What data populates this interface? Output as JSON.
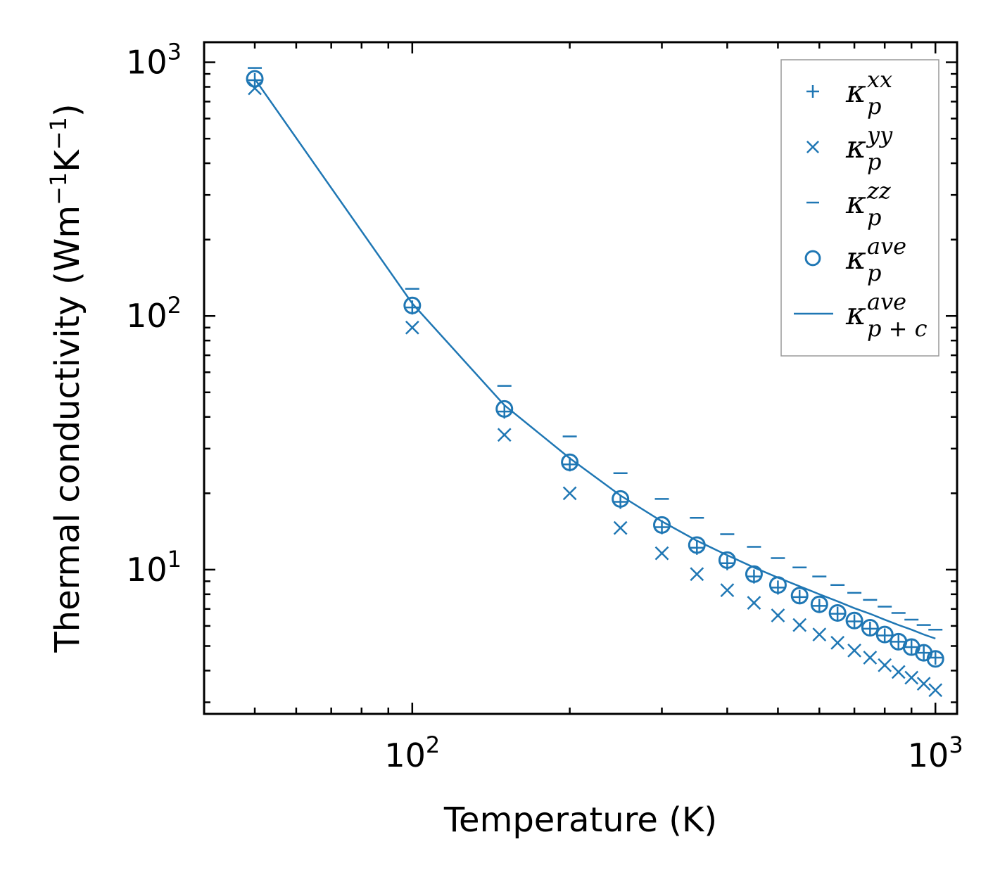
{
  "chart_data": {
    "type": "scatter",
    "xscale": "log",
    "yscale": "log",
    "xlim": [
      40,
      1100
    ],
    "ylim": [
      2.7,
      1200
    ],
    "xlabel": "Temperature (K)",
    "ylabel": {
      "prefix": "Thermal conductivity (Wm",
      "exp1": "−1",
      "middle": "K",
      "exp2": "−1",
      "suffix": ")"
    },
    "xticks": [
      {
        "value": 100,
        "base": "10",
        "exp": "2"
      },
      {
        "value": 1000,
        "base": "10",
        "exp": "3"
      }
    ],
    "yticks": [
      {
        "value": 10,
        "base": "10",
        "exp": "1"
      },
      {
        "value": 100,
        "base": "10",
        "exp": "2"
      },
      {
        "value": 1000,
        "base": "10",
        "exp": "3"
      }
    ],
    "color": "#1f77b4",
    "x": [
      50,
      100,
      150,
      200,
      250,
      300,
      350,
      400,
      450,
      500,
      550,
      600,
      650,
      700,
      750,
      800,
      850,
      900,
      950,
      1000
    ],
    "series": [
      {
        "name": "κp^xx",
        "marker": "plus",
        "values": [
          850,
          108,
          42,
          26,
          18.5,
          14.7,
          12.2,
          10.6,
          9.4,
          8.5,
          7.8,
          7.2,
          6.7,
          6.25,
          5.85,
          5.5,
          5.2,
          4.95,
          4.7,
          4.5
        ]
      },
      {
        "name": "κp^yy",
        "marker": "x",
        "values": [
          790,
          90,
          34,
          20,
          14.6,
          11.6,
          9.6,
          8.3,
          7.4,
          6.6,
          6.05,
          5.55,
          5.15,
          4.8,
          4.5,
          4.2,
          3.95,
          3.75,
          3.55,
          3.35
        ]
      },
      {
        "name": "κp^zz",
        "marker": "hline",
        "values": [
          950,
          128,
          53,
          33.5,
          24,
          19,
          16,
          13.8,
          12.3,
          11.1,
          10.2,
          9.4,
          8.7,
          8.1,
          7.6,
          7.15,
          6.75,
          6.35,
          6.05,
          5.8
        ]
      },
      {
        "name": "κp^ave",
        "marker": "circle",
        "values": [
          860,
          110,
          43,
          26.5,
          19,
          15,
          12.5,
          10.9,
          9.6,
          8.7,
          7.9,
          7.3,
          6.75,
          6.3,
          5.9,
          5.55,
          5.2,
          4.95,
          4.7,
          4.45
        ]
      },
      {
        "name": "κp+c^ave",
        "marker": "line",
        "values": [
          860,
          112,
          44.5,
          27.5,
          19.6,
          15.5,
          13.0,
          11.4,
          10.2,
          9.3,
          8.6,
          8.0,
          7.5,
          7.05,
          6.7,
          6.35,
          6.05,
          5.8,
          5.55,
          5.35
        ]
      }
    ],
    "legend": {
      "position": "top-right",
      "entries": [
        {
          "symbol": "κ",
          "sub": "p",
          "sup": "xx",
          "marker": "plus"
        },
        {
          "symbol": "κ",
          "sub": "p",
          "sup": "yy",
          "marker": "x"
        },
        {
          "symbol": "κ",
          "sub": "p",
          "sup": "zz",
          "marker": "hline"
        },
        {
          "symbol": "κ",
          "sub": "p",
          "sup": "ave",
          "marker": "circle"
        },
        {
          "symbol": "κ",
          "sub": "p + c",
          "sup": "ave",
          "marker": "line"
        }
      ]
    }
  }
}
